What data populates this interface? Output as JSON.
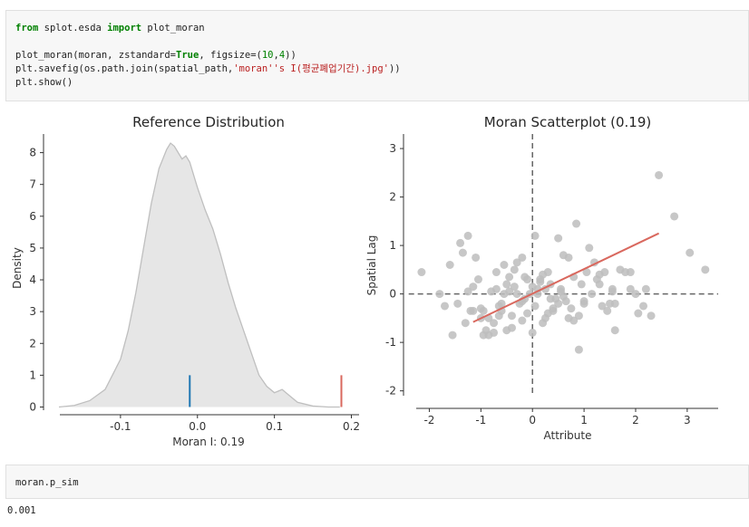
{
  "cells": {
    "code1": {
      "line1": {
        "kw1": "from",
        "mid": " splot.esda ",
        "kw2": "import",
        "rest": " plot_moran"
      },
      "line3": {
        "pre": "plot_moran(moran, zstandard=",
        "lit": "True",
        "mid": ", figsize=(",
        "n1": "10",
        "comma": ",",
        "n2": "4",
        "post": "))"
      },
      "line4": {
        "pre": "plt.savefig(os.path.join(spatial_path,",
        "str": "'moran''s I(평균폐업기간).jpg'",
        "post": "))"
      },
      "line5": "plt.show()"
    },
    "code2": "moran.p_sim",
    "output2": "0.001"
  },
  "chart_data": [
    {
      "type": "area",
      "title": "Reference Distribution",
      "xlabel": "Moran I: 0.19",
      "ylabel": "Density",
      "xlim": [
        -0.2,
        0.21
      ],
      "ylim": [
        -0.1,
        8.7
      ],
      "xticks": [
        "-0.1",
        "0.0",
        "0.1",
        "0.2"
      ],
      "yticks": [
        "0",
        "1",
        "2",
        "3",
        "4",
        "5",
        "6",
        "7",
        "8"
      ],
      "density_x": [
        -0.18,
        -0.16,
        -0.14,
        -0.12,
        -0.1,
        -0.09,
        -0.08,
        -0.07,
        -0.06,
        -0.05,
        -0.04,
        -0.035,
        -0.03,
        -0.02,
        -0.015,
        -0.01,
        -0.005,
        0.0,
        0.01,
        0.02,
        0.03,
        0.04,
        0.05,
        0.06,
        0.07,
        0.08,
        0.09,
        0.1,
        0.11,
        0.12,
        0.13,
        0.15,
        0.17,
        0.185
      ],
      "density_y": [
        0.0,
        0.05,
        0.2,
        0.55,
        1.5,
        2.4,
        3.6,
        5.0,
        6.4,
        7.5,
        8.1,
        8.3,
        8.2,
        7.8,
        7.9,
        7.7,
        7.3,
        6.9,
        6.2,
        5.6,
        4.8,
        3.9,
        3.1,
        2.4,
        1.7,
        1.0,
        0.65,
        0.45,
        0.55,
        0.35,
        0.15,
        0.03,
        0.0,
        0.0
      ],
      "markers": [
        {
          "value": -0.01,
          "height": 1.0,
          "color": "#1f77b4"
        },
        {
          "value": 0.187,
          "height": 1.0,
          "color": "#d9685e"
        }
      ],
      "fill_color": "#e6e6e6",
      "line_color": "#bfbfbf"
    },
    {
      "type": "scatter",
      "title": "Moran Scatterplot (0.19)",
      "xlabel": "Attribute",
      "ylabel": "Spatial Lag",
      "xlim": [
        -2.5,
        3.6
      ],
      "ylim": [
        -2.1,
        3.3
      ],
      "xticks": [
        "-2",
        "-1",
        "0",
        "1",
        "2",
        "3"
      ],
      "yticks": [
        "-2",
        "-1",
        "0",
        "1",
        "2",
        "3"
      ],
      "point_color": "#bdbdbd",
      "fit_color": "#d9685e",
      "fit_line": {
        "x": [
          -1.15,
          2.45
        ],
        "y": [
          -0.58,
          1.25
        ]
      },
      "points": {
        "x": [
          -2.15,
          -1.4,
          -1.25,
          -1.15,
          -1.0,
          -0.85,
          -0.75,
          -0.6,
          -0.5,
          -0.35,
          -0.2,
          -0.1,
          0.05,
          0.15,
          0.3,
          0.5,
          0.7,
          0.85,
          1.0,
          1.2,
          1.4,
          1.6,
          1.9,
          2.2,
          2.45,
          2.75,
          3.05,
          3.35,
          -1.7,
          -1.55,
          -1.3,
          -1.2,
          -1.05,
          -0.95,
          -0.8,
          -0.7,
          -0.65,
          -0.55,
          -0.45,
          -0.4,
          -0.3,
          -0.25,
          -0.15,
          -0.05,
          0.0,
          0.1,
          0.2,
          0.25,
          0.35,
          0.4,
          0.55,
          0.6,
          0.8,
          0.9,
          1.1,
          1.3,
          1.5,
          1.7,
          2.0,
          2.3,
          -1.35,
          -1.1,
          -0.9,
          -0.6,
          -0.45,
          -0.2,
          0.1,
          0.45,
          0.75,
          1.05,
          1.25,
          1.55,
          -1.6,
          -1.0,
          -0.7,
          -0.35,
          0.05,
          0.3,
          0.65,
          0.95,
          1.35,
          1.8,
          -1.45,
          -0.85,
          -0.5,
          -0.15,
          0.2,
          0.55,
          1.15,
          2.05,
          -0.75,
          -0.3,
          0.15,
          0.5,
          0.9,
          1.45,
          -1.8,
          -0.95,
          -0.55,
          -0.1,
          0.35,
          0.8,
          1.6,
          -0.65,
          0.0,
          0.4,
          1.0,
          1.9,
          -1.25,
          -0.4,
          0.25,
          0.7,
          1.3,
          -1.15,
          -0.2,
          0.6,
          1.55,
          2.15
        ],
        "y": [
          0.45,
          1.05,
          1.2,
          -0.35,
          -0.5,
          -0.85,
          -0.8,
          -0.2,
          -0.75,
          0.15,
          0.75,
          -0.4,
          1.2,
          0.3,
          0.45,
          1.15,
          0.75,
          1.45,
          -0.2,
          0.65,
          0.45,
          -0.2,
          0.45,
          0.1,
          2.45,
          1.6,
          0.85,
          0.5,
          -0.25,
          -0.85,
          -0.6,
          -0.35,
          0.3,
          -0.85,
          0.05,
          0.45,
          -0.45,
          0.6,
          0.05,
          -0.7,
          0.65,
          -0.2,
          0.35,
          0.0,
          -0.8,
          0.1,
          0.4,
          -0.5,
          0.2,
          -0.35,
          0.05,
          0.8,
          0.35,
          -1.15,
          0.95,
          0.2,
          -0.2,
          0.5,
          0.0,
          -0.45,
          0.85,
          0.75,
          -0.75,
          -0.35,
          0.35,
          -0.55,
          0.0,
          -0.1,
          -0.3,
          0.45,
          0.3,
          0.05,
          0.6,
          -0.3,
          0.1,
          0.5,
          -0.25,
          -0.4,
          -0.15,
          0.2,
          -0.25,
          0.45,
          -0.2,
          -0.5,
          0.2,
          -0.1,
          -0.6,
          0.1,
          0.0,
          -0.4,
          -0.6,
          0.0,
          0.25,
          -0.2,
          -0.45,
          -0.35,
          0.0,
          -0.35,
          0.0,
          0.3,
          -0.1,
          -0.55,
          -0.75,
          -0.25,
          0.15,
          -0.3,
          -0.15,
          0.1,
          0.05,
          -0.45,
          0.1,
          -0.5,
          0.4,
          0.15,
          -0.15,
          -0.05,
          0.1,
          -0.25
        ]
      }
    }
  ]
}
